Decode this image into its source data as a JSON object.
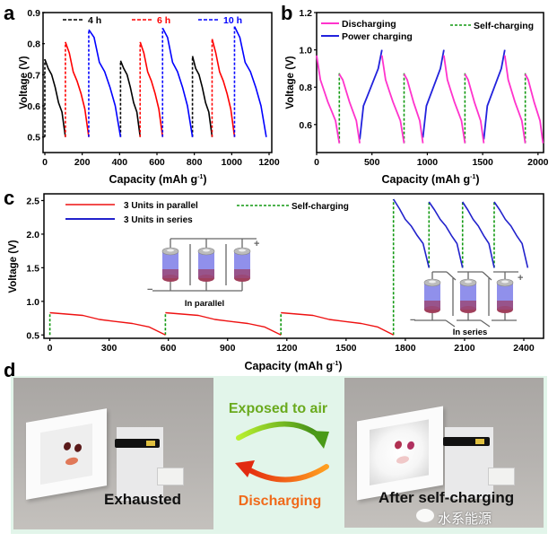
{
  "figure": {
    "panel_labels": {
      "a": "a",
      "b": "b",
      "c": "c",
      "d": "d"
    }
  },
  "chart_data": [
    {
      "id": "a",
      "type": "line",
      "title": "",
      "xlabel": "Capacity (mAh g-1)",
      "xlabel_main": "Capacity (mAh g",
      "xlabel_sup": "-1",
      "xlabel_end": ")",
      "ylabel": "Voltage (V)",
      "xlim": [
        0,
        1200
      ],
      "ylim": [
        0.45,
        0.9
      ],
      "xticks": [
        0,
        200,
        400,
        600,
        800,
        1000,
        1200
      ],
      "yticks": [
        0.5,
        0.6,
        0.7,
        0.8,
        0.9
      ],
      "ytick_labels": [
        "0.5",
        "0.6",
        "0.7",
        "0.8",
        "0.9"
      ],
      "grid": false,
      "legend": {
        "placement": "top",
        "entries": [
          {
            "label": "4 h",
            "color": "#000000",
            "style": "dashed"
          },
          {
            "label": "6 h",
            "color": "#ff0000",
            "style": "dashed"
          },
          {
            "label": "10 h",
            "color": "#0000ff",
            "style": "dashed"
          }
        ]
      },
      "series": [
        {
          "name": "4 h",
          "color": "#000000",
          "segments": [
            {
              "start": 0,
              "end": 110,
              "v": [
                0.75,
                0.72,
                0.7,
                0.66,
                0.61,
                0.58,
                0.5
              ]
            },
            {
              "start": 405,
              "end": 510,
              "v": [
                0.745,
                0.72,
                0.7,
                0.66,
                0.61,
                0.58,
                0.5
              ]
            },
            {
              "start": 790,
              "end": 895,
              "v": [
                0.76,
                0.72,
                0.7,
                0.66,
                0.61,
                0.58,
                0.5
              ]
            }
          ]
        },
        {
          "name": "6 h",
          "color": "#ff0000",
          "segments": [
            {
              "start": 110,
              "end": 235,
              "v": [
                0.805,
                0.77,
                0.71,
                0.68,
                0.64,
                0.59,
                0.5
              ]
            },
            {
              "start": 510,
              "end": 630,
              "v": [
                0.805,
                0.77,
                0.71,
                0.68,
                0.64,
                0.59,
                0.5
              ]
            },
            {
              "start": 895,
              "end": 1015,
              "v": [
                0.815,
                0.77,
                0.71,
                0.68,
                0.64,
                0.59,
                0.5
              ]
            }
          ]
        },
        {
          "name": "10 h",
          "color": "#0000ff",
          "segments": [
            {
              "start": 235,
              "end": 405,
              "v": [
                0.845,
                0.82,
                0.74,
                0.71,
                0.66,
                0.6,
                0.5
              ]
            },
            {
              "start": 630,
              "end": 790,
              "v": [
                0.85,
                0.82,
                0.74,
                0.71,
                0.66,
                0.6,
                0.5
              ]
            },
            {
              "start": 1015,
              "end": 1185,
              "v": [
                0.855,
                0.82,
                0.74,
                0.71,
                0.66,
                0.6,
                0.5
              ]
            }
          ]
        }
      ]
    },
    {
      "id": "b",
      "type": "line",
      "title": "",
      "xlabel": "Capacity (mAh g-1)",
      "xlabel_main": "Capacity (mAh g",
      "xlabel_sup": "-1",
      "xlabel_end": ")",
      "ylabel": "Voltage (V)",
      "xlim": [
        0,
        2050
      ],
      "ylim": [
        0.45,
        1.2
      ],
      "xticks": [
        0,
        500,
        1000,
        1500,
        2000
      ],
      "yticks": [
        0.6,
        0.8,
        1.0,
        1.2
      ],
      "ytick_labels": [
        "0.6",
        "0.8",
        "1.0",
        "1.2"
      ],
      "grid": false,
      "legend": {
        "placement": "top",
        "entries": [
          {
            "label": "Discharging",
            "color": "#ff33cc",
            "style": "solid"
          },
          {
            "label": "Power charging",
            "color": "#2222dd",
            "style": "solid"
          },
          {
            "label": "Self-charging",
            "color": "#119911",
            "style": "dashed"
          }
        ]
      },
      "discharge": [
        {
          "start": 0,
          "end": 205,
          "v": [
            0.97,
            0.84,
            0.78,
            0.72,
            0.67,
            0.62,
            0.5
          ]
        },
        {
          "start": 205,
          "end": 390,
          "v": [
            0.87,
            0.84,
            0.78,
            0.72,
            0.67,
            0.62,
            0.5
          ]
        },
        {
          "start": 590,
          "end": 790,
          "v": [
            0.97,
            0.84,
            0.78,
            0.72,
            0.67,
            0.62,
            0.5
          ]
        },
        {
          "start": 790,
          "end": 960,
          "v": [
            0.87,
            0.84,
            0.78,
            0.72,
            0.67,
            0.62,
            0.5
          ]
        },
        {
          "start": 1150,
          "end": 1340,
          "v": [
            0.97,
            0.84,
            0.78,
            0.72,
            0.67,
            0.62,
            0.5
          ]
        },
        {
          "start": 1340,
          "end": 1510,
          "v": [
            0.87,
            0.84,
            0.78,
            0.72,
            0.67,
            0.62,
            0.5
          ]
        },
        {
          "start": 1700,
          "end": 1885,
          "v": [
            0.97,
            0.84,
            0.78,
            0.72,
            0.67,
            0.62,
            0.5
          ]
        },
        {
          "start": 1885,
          "end": 2045,
          "v": [
            0.87,
            0.84,
            0.78,
            0.72,
            0.67,
            0.62,
            0.5
          ]
        }
      ],
      "power_charge": [
        {
          "start": 390,
          "end": 590,
          "v": [
            0.52,
            0.7,
            0.75,
            0.8,
            0.85,
            0.9,
            1.0
          ]
        },
        {
          "start": 960,
          "end": 1150,
          "v": [
            0.53,
            0.7,
            0.75,
            0.8,
            0.85,
            0.9,
            1.0
          ]
        },
        {
          "start": 1510,
          "end": 1700,
          "v": [
            0.52,
            0.7,
            0.75,
            0.8,
            0.85,
            0.9,
            1.0
          ]
        }
      ],
      "self_charge": [
        {
          "x": 205,
          "from": 0.5,
          "to": 0.88
        },
        {
          "x": 790,
          "from": 0.5,
          "to": 0.88
        },
        {
          "x": 1340,
          "from": 0.5,
          "to": 0.88
        },
        {
          "x": 1885,
          "from": 0.5,
          "to": 0.88
        }
      ]
    },
    {
      "id": "c",
      "type": "line",
      "title": "",
      "xlabel": "Capacity (mAh g-1)",
      "xlabel_main": "Capacity (mAh g",
      "xlabel_sup": "-1",
      "xlabel_end": ")",
      "ylabel": "Voltage (V)",
      "xlim": [
        -30,
        2500
      ],
      "ylim": [
        0.45,
        2.6
      ],
      "xticks": [
        0,
        300,
        600,
        900,
        1200,
        1500,
        1800,
        2100,
        2400
      ],
      "yticks": [
        0.5,
        1.0,
        1.5,
        2.0,
        2.5
      ],
      "ytick_labels": [
        "0.5",
        "1.0",
        "1.5",
        "2.0",
        "2.5"
      ],
      "grid": false,
      "legend": {
        "placement": "top",
        "entries": [
          {
            "label": "3 Units in parallel",
            "color": "#ee1111",
            "style": "solid"
          },
          {
            "label": "3 Units in series",
            "color": "#2222cc",
            "style": "solid"
          },
          {
            "label": "Self-charging",
            "color": "#119911",
            "style": "dashed"
          }
        ]
      },
      "parallel": [
        {
          "start": 0,
          "end": 585,
          "v": [
            0.83,
            0.81,
            0.79,
            0.73,
            0.7,
            0.67,
            0.62,
            0.5
          ]
        },
        {
          "start": 585,
          "end": 1170,
          "v": [
            0.83,
            0.81,
            0.79,
            0.73,
            0.7,
            0.67,
            0.62,
            0.5
          ]
        },
        {
          "start": 1170,
          "end": 1740,
          "v": [
            0.83,
            0.81,
            0.79,
            0.73,
            0.7,
            0.67,
            0.62,
            0.5
          ]
        }
      ],
      "series_units": [
        {
          "start": 1740,
          "end": 1920,
          "v": [
            2.52,
            2.38,
            2.22,
            2.12,
            1.98,
            1.86,
            1.5
          ]
        },
        {
          "start": 1920,
          "end": 2090,
          "v": [
            2.48,
            2.36,
            2.22,
            2.12,
            1.98,
            1.86,
            1.5
          ]
        },
        {
          "start": 2090,
          "end": 2250,
          "v": [
            2.48,
            2.36,
            2.22,
            2.12,
            1.98,
            1.86,
            1.5
          ]
        },
        {
          "start": 2250,
          "end": 2420,
          "v": [
            2.48,
            2.36,
            2.22,
            2.12,
            1.98,
            1.86,
            1.5
          ]
        }
      ],
      "self_charge": [
        {
          "x": 0,
          "from": 0.5,
          "to": 0.83
        },
        {
          "x": 585,
          "from": 0.5,
          "to": 0.83
        },
        {
          "x": 1170,
          "from": 0.5,
          "to": 0.83
        },
        {
          "x": 1740,
          "from": 0.5,
          "to": 2.52
        },
        {
          "x": 1920,
          "from": 1.5,
          "to": 2.48
        },
        {
          "x": 2090,
          "from": 1.5,
          "to": 2.48
        },
        {
          "x": 2250,
          "from": 1.5,
          "to": 2.48
        }
      ],
      "insets": {
        "parallel_label": "In parallel",
        "series_label": "In series",
        "plus": "+",
        "minus": "−"
      }
    }
  ],
  "panel_d": {
    "left_caption": "Exhausted",
    "right_caption": "After self-charging",
    "arrow_top_label": "Exposed to air",
    "arrow_bottom_label": "Discharging",
    "colors": {
      "top": "#6aaa1e",
      "bottom": "#f06a1a",
      "bg": "#e2f5ea"
    },
    "watermark": "水系能源"
  }
}
